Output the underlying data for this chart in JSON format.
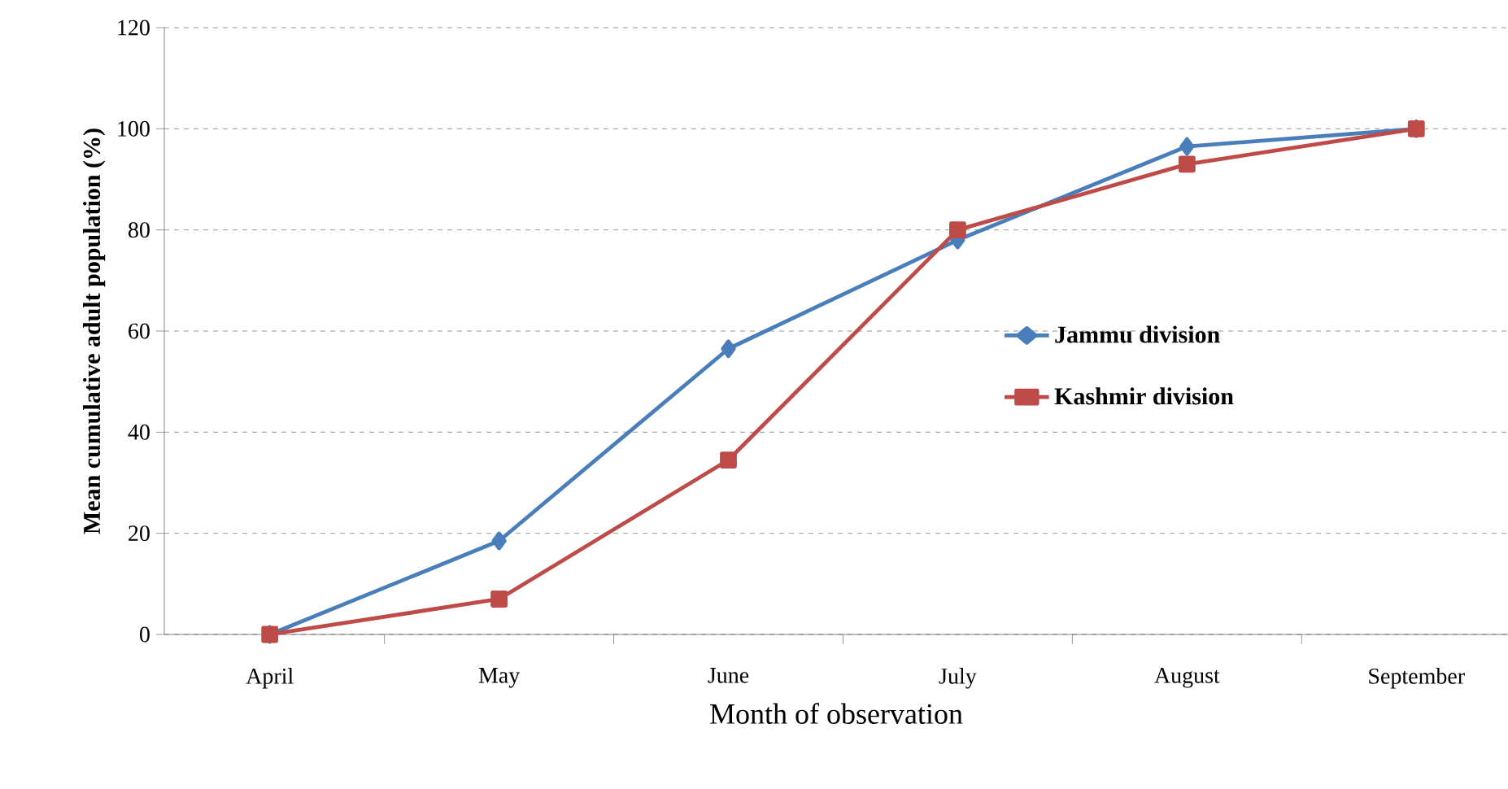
{
  "chart_data": {
    "type": "line",
    "xlabel": "Month of observation",
    "ylabel": "Mean cumulative adult population (%)",
    "categories": [
      "April",
      "May",
      "June",
      "July",
      "August",
      "September"
    ],
    "series": [
      {
        "name": "Jammu division",
        "color": "#4a7ebb",
        "marker": "diamond",
        "values": [
          0,
          18.5,
          56.5,
          78,
          96.5,
          100
        ]
      },
      {
        "name": "Kashmir division",
        "color": "#be4b48",
        "marker": "square",
        "values": [
          0,
          7,
          34.5,
          80,
          93,
          100
        ]
      }
    ],
    "ylim": [
      0,
      120
    ],
    "yticks": [
      0,
      20,
      40,
      60,
      80,
      100,
      120
    ],
    "grid": "y",
    "legend": "right",
    "line_style": "solid"
  }
}
